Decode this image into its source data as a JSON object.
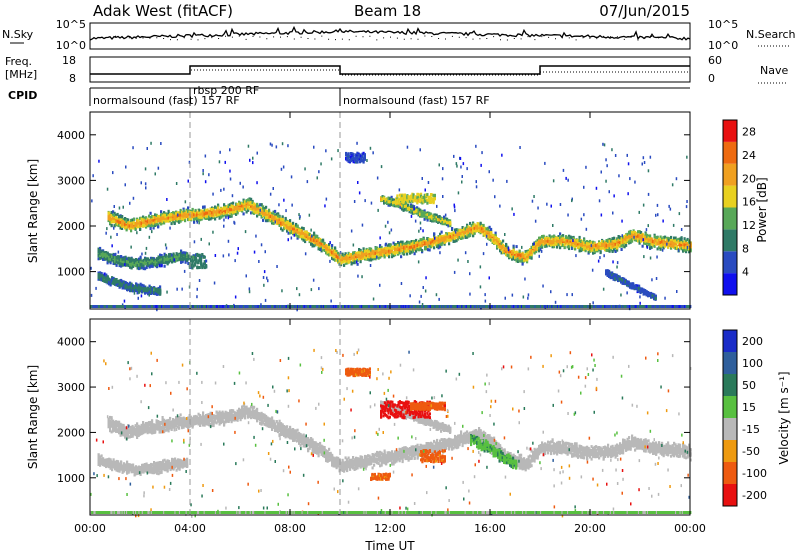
{
  "header": {
    "station": "Adak West (fitACF)",
    "beam": "Beam 18",
    "date": "07/Jun/2015"
  },
  "panels": {
    "nsky": {
      "left_label": "N.Sky",
      "right_label": "N.Search",
      "ticks": [
        "10^5",
        "10^0"
      ]
    },
    "freq": {
      "left_label_1": "Freq.",
      "left_label_2": "[MHz]",
      "left_ticks": [
        "18",
        "8"
      ],
      "right_label": "Nave",
      "right_ticks": [
        "60",
        "0"
      ]
    },
    "cpid": {
      "label": "CPID",
      "segments": [
        {
          "start_hour": 0,
          "end_hour": 4,
          "label": "normalsound (fast) 157 RF"
        },
        {
          "start_hour": 4,
          "end_hour": 10,
          "label": "rbsp 200 RF"
        },
        {
          "start_hour": 10,
          "end_hour": 24,
          "label": "normalsound (fast) 157 RF"
        }
      ]
    }
  },
  "chart_data": [
    {
      "type": "heatmap",
      "name": "power",
      "ylabel": "Slant Range [km]",
      "ylim": [
        180,
        4500
      ],
      "yticks": [
        1000,
        2000,
        3000,
        4000
      ],
      "xlim": [
        0,
        24
      ],
      "colorbar": {
        "label": "Power [dB]",
        "range": [
          0,
          30
        ],
        "ticks": [
          4,
          8,
          12,
          16,
          20,
          24,
          28
        ],
        "colors": [
          "#1010ee",
          "#2a4bc0",
          "#2f7a66",
          "#58a858",
          "#e8d020",
          "#f0a020",
          "#ee6a10",
          "#e81010"
        ]
      },
      "bands": [
        {
          "points": [
            [
              0.7,
              2200
            ],
            [
              1.5,
              2000
            ],
            [
              2.5,
              2120
            ],
            [
              3.5,
              2220
            ],
            [
              4.5,
              2260
            ],
            [
              5.5,
              2340
            ],
            [
              6.3,
              2470
            ],
            [
              7.2,
              2200
            ],
            [
              8.2,
              1900
            ],
            [
              9.2,
              1610
            ],
            [
              10.0,
              1260
            ],
            [
              11.0,
              1370
            ],
            [
              12.0,
              1460
            ],
            [
              13.0,
              1560
            ],
            [
              14.0,
              1700
            ],
            [
              15.0,
              1870
            ],
            [
              15.5,
              1980
            ],
            [
              16.0,
              1780
            ],
            [
              16.6,
              1450
            ],
            [
              17.4,
              1300
            ],
            [
              18.0,
              1660
            ],
            [
              19.0,
              1660
            ],
            [
              20.0,
              1540
            ],
            [
              21.0,
              1600
            ],
            [
              21.7,
              1800
            ],
            [
              22.5,
              1660
            ],
            [
              24.0,
              1560
            ]
          ],
          "width": 190,
          "peak": 23
        },
        {
          "points": [
            [
              0.3,
              1400
            ],
            [
              1.0,
              1260
            ],
            [
              1.8,
              1170
            ],
            [
              2.6,
              1220
            ],
            [
              3.3,
              1300
            ],
            [
              3.9,
              1330
            ]
          ],
          "width": 150,
          "peak": 13
        },
        {
          "points": [
            [
              0.3,
              900
            ],
            [
              1.0,
              760
            ],
            [
              1.5,
              660
            ],
            [
              2.2,
              600
            ],
            [
              2.8,
              560
            ]
          ],
          "width": 130,
          "peak": 10
        },
        {
          "points": [
            [
              11.6,
              2600
            ],
            [
              12.3,
              2480
            ],
            [
              13.0,
              2320
            ],
            [
              13.6,
              2200
            ],
            [
              14.4,
              2050
            ]
          ],
          "width": 110,
          "peak": 18
        },
        {
          "points": [
            [
              20.6,
              980
            ],
            [
              21.4,
              760
            ],
            [
              22.1,
              560
            ],
            [
              22.6,
              420
            ]
          ],
          "width": 80,
          "peak": 8
        }
      ],
      "patches": [
        {
          "x": [
            3.9,
            4.6
          ],
          "range": [
            1080,
            1380
          ],
          "peak": 9
        },
        {
          "x": [
            12.2,
            13.8
          ],
          "range": [
            2500,
            2700
          ],
          "peak": 16
        },
        {
          "x": [
            10.2,
            11.0
          ],
          "range": [
            3400,
            3600
          ],
          "peak": 5
        }
      ]
    },
    {
      "type": "heatmap",
      "name": "velocity",
      "ylabel": "Slant Range [km]",
      "xlabel": "Time UT",
      "ylim": [
        180,
        4500
      ],
      "yticks": [
        1000,
        2000,
        3000,
        4000
      ],
      "xlim": [
        0,
        24
      ],
      "xticks": [
        "00:00",
        "04:00",
        "08:00",
        "12:00",
        "16:00",
        "20:00",
        "00:00"
      ],
      "colorbar": {
        "label": "Velocity [m s⁻¹]",
        "ticks": [
          "200",
          "100",
          "50",
          "15",
          "-15",
          "-50",
          "-100",
          "-200"
        ],
        "colors": [
          "#1a2cc8",
          "#2f5f9c",
          "#2a7a5a",
          "#58c040",
          "#b8b8b8",
          "#ee9a10",
          "#ee5a10",
          "#e81010"
        ]
      },
      "bands": [
        {
          "points": [
            [
              0.7,
              2200
            ],
            [
              1.5,
              2000
            ],
            [
              2.5,
              2120
            ],
            [
              3.5,
              2220
            ],
            [
              4.5,
              2260
            ],
            [
              5.5,
              2340
            ],
            [
              6.3,
              2470
            ],
            [
              7.2,
              2200
            ],
            [
              8.2,
              1900
            ],
            [
              9.2,
              1610
            ],
            [
              10.0,
              1260
            ],
            [
              11.0,
              1370
            ],
            [
              12.0,
              1460
            ],
            [
              13.0,
              1560
            ],
            [
              14.0,
              1700
            ],
            [
              15.0,
              1870
            ],
            [
              15.5,
              1980
            ],
            [
              16.0,
              1780
            ],
            [
              16.6,
              1450
            ],
            [
              17.4,
              1300
            ],
            [
              18.0,
              1660
            ],
            [
              19.0,
              1660
            ],
            [
              20.0,
              1540
            ],
            [
              21.0,
              1600
            ],
            [
              21.7,
              1800
            ],
            [
              22.5,
              1660
            ],
            [
              24.0,
              1560
            ]
          ],
          "width": 190,
          "velocity": 0
        },
        {
          "points": [
            [
              0.3,
              1400
            ],
            [
              1.0,
              1260
            ],
            [
              1.8,
              1170
            ],
            [
              2.6,
              1220
            ],
            [
              3.3,
              1300
            ],
            [
              3.9,
              1330
            ]
          ],
          "width": 150,
          "velocity": 0
        },
        {
          "points": [
            [
              15.2,
              1850
            ],
            [
              15.8,
              1700
            ],
            [
              16.4,
              1480
            ],
            [
              17.0,
              1300
            ]
          ],
          "width": 160,
          "velocity": 30
        },
        {
          "points": [
            [
              11.6,
              2600
            ],
            [
              12.3,
              2480
            ],
            [
              13.0,
              2320
            ],
            [
              13.6,
              2200
            ],
            [
              14.4,
              2050
            ]
          ],
          "width": 110,
          "velocity": 0
        }
      ],
      "patches": [
        {
          "x": [
            11.6,
            13.6
          ],
          "range": [
            2320,
            2680
          ],
          "velocity": -150
        },
        {
          "x": [
            12.8,
            14.2
          ],
          "range": [
            2500,
            2650
          ],
          "velocity": -60
        },
        {
          "x": [
            13.2,
            14.2
          ],
          "range": [
            1350,
            1600
          ],
          "velocity": -40
        },
        {
          "x": [
            11.2,
            12.0
          ],
          "range": [
            960,
            1080
          ],
          "velocity": -40
        },
        {
          "x": [
            10.2,
            11.2
          ],
          "range": [
            3250,
            3400
          ],
          "velocity": -40
        }
      ]
    }
  ]
}
